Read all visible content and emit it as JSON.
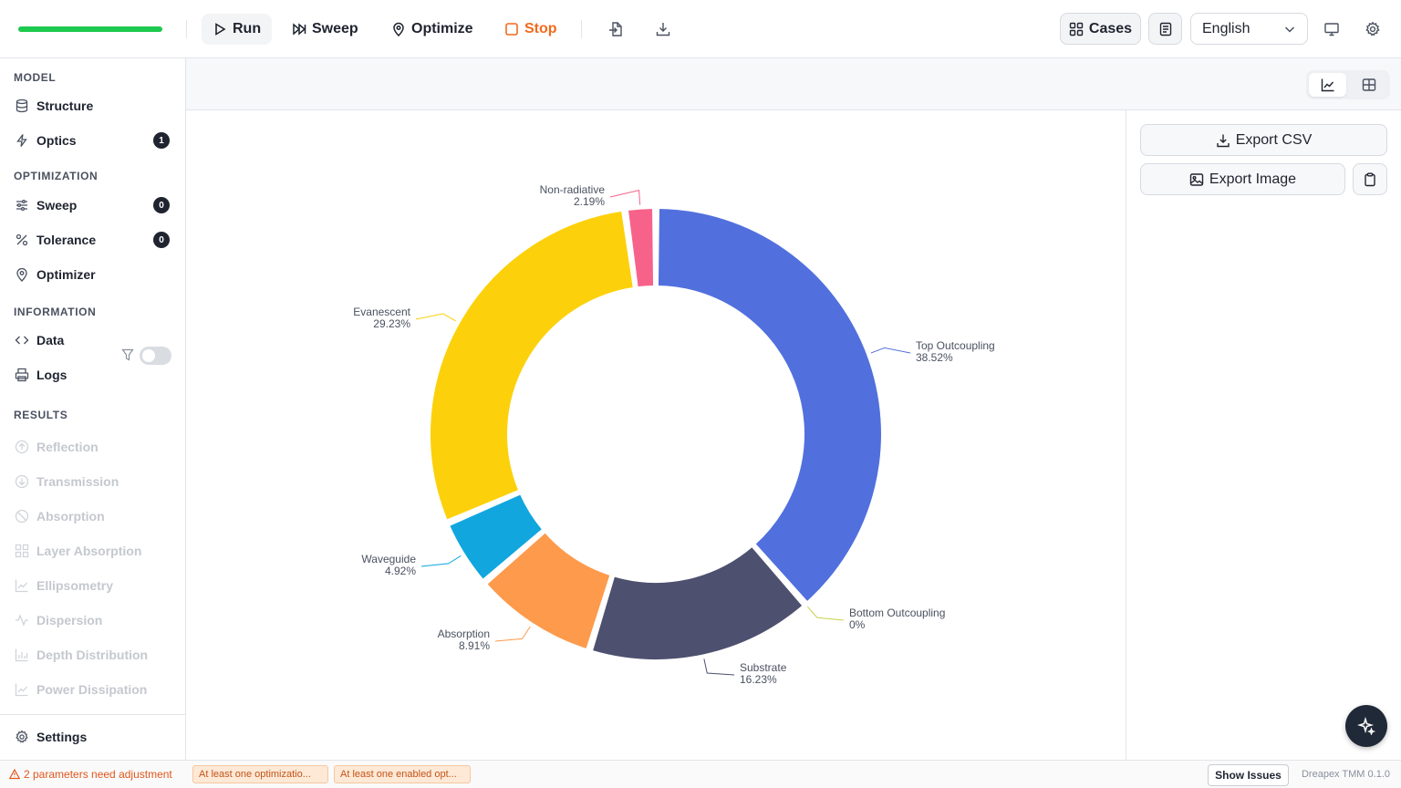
{
  "toolbar": {
    "progress": 1.0,
    "run_label": "Run",
    "sweep_label": "Sweep",
    "optimize_label": "Optimize",
    "stop_label": "Stop",
    "cases_label": "Cases",
    "language": "English"
  },
  "sidebar": {
    "model_header": "MODEL",
    "structure": "Structure",
    "optics": "Optics",
    "optics_badge": "1",
    "optimization_header": "OPTIMIZATION",
    "sweep": "Sweep",
    "sweep_badge": "0",
    "tolerance": "Tolerance",
    "tolerance_badge": "0",
    "optimizer": "Optimizer",
    "information_header": "INFORMATION",
    "data": "Data",
    "logs": "Logs",
    "results_header": "RESULTS",
    "results": [
      "Reflection",
      "Transmission",
      "Absorption",
      "Layer Absorption",
      "Ellipsometry",
      "Dispersion",
      "Depth Distribution",
      "Power Dissipation"
    ],
    "settings": "Settings"
  },
  "panel": {
    "export_csv": "Export CSV",
    "export_image": "Export Image"
  },
  "status": {
    "warning": "2 parameters need adjustment",
    "chip1": "At least one optimizatio...",
    "chip2": "At least one enabled opt...",
    "show_issues": "Show Issues",
    "version": "Dreapex TMM 0.1.0"
  },
  "chart_data": {
    "type": "pie",
    "variant": "donut",
    "slices": [
      {
        "name": "Top Outcoupling",
        "label": "38.52%",
        "value": 38.52,
        "color": "#5170de"
      },
      {
        "name": "Bottom Outcoupling",
        "label": "0%",
        "value": 0,
        "color": "#c9d34a"
      },
      {
        "name": "Substrate",
        "label": "16.23%",
        "value": 16.23,
        "color": "#4d506e"
      },
      {
        "name": "Absorption",
        "label": "8.91%",
        "value": 8.91,
        "color": "#fd9a4c"
      },
      {
        "name": "Waveguide",
        "label": "4.92%",
        "value": 4.92,
        "color": "#11a6de"
      },
      {
        "name": "Evanescent",
        "label": "29.23%",
        "value": 29.23,
        "color": "#fcd10b"
      },
      {
        "name": "Non-radiative",
        "label": "2.19%",
        "value": 2.19,
        "color": "#f7628a"
      }
    ]
  }
}
